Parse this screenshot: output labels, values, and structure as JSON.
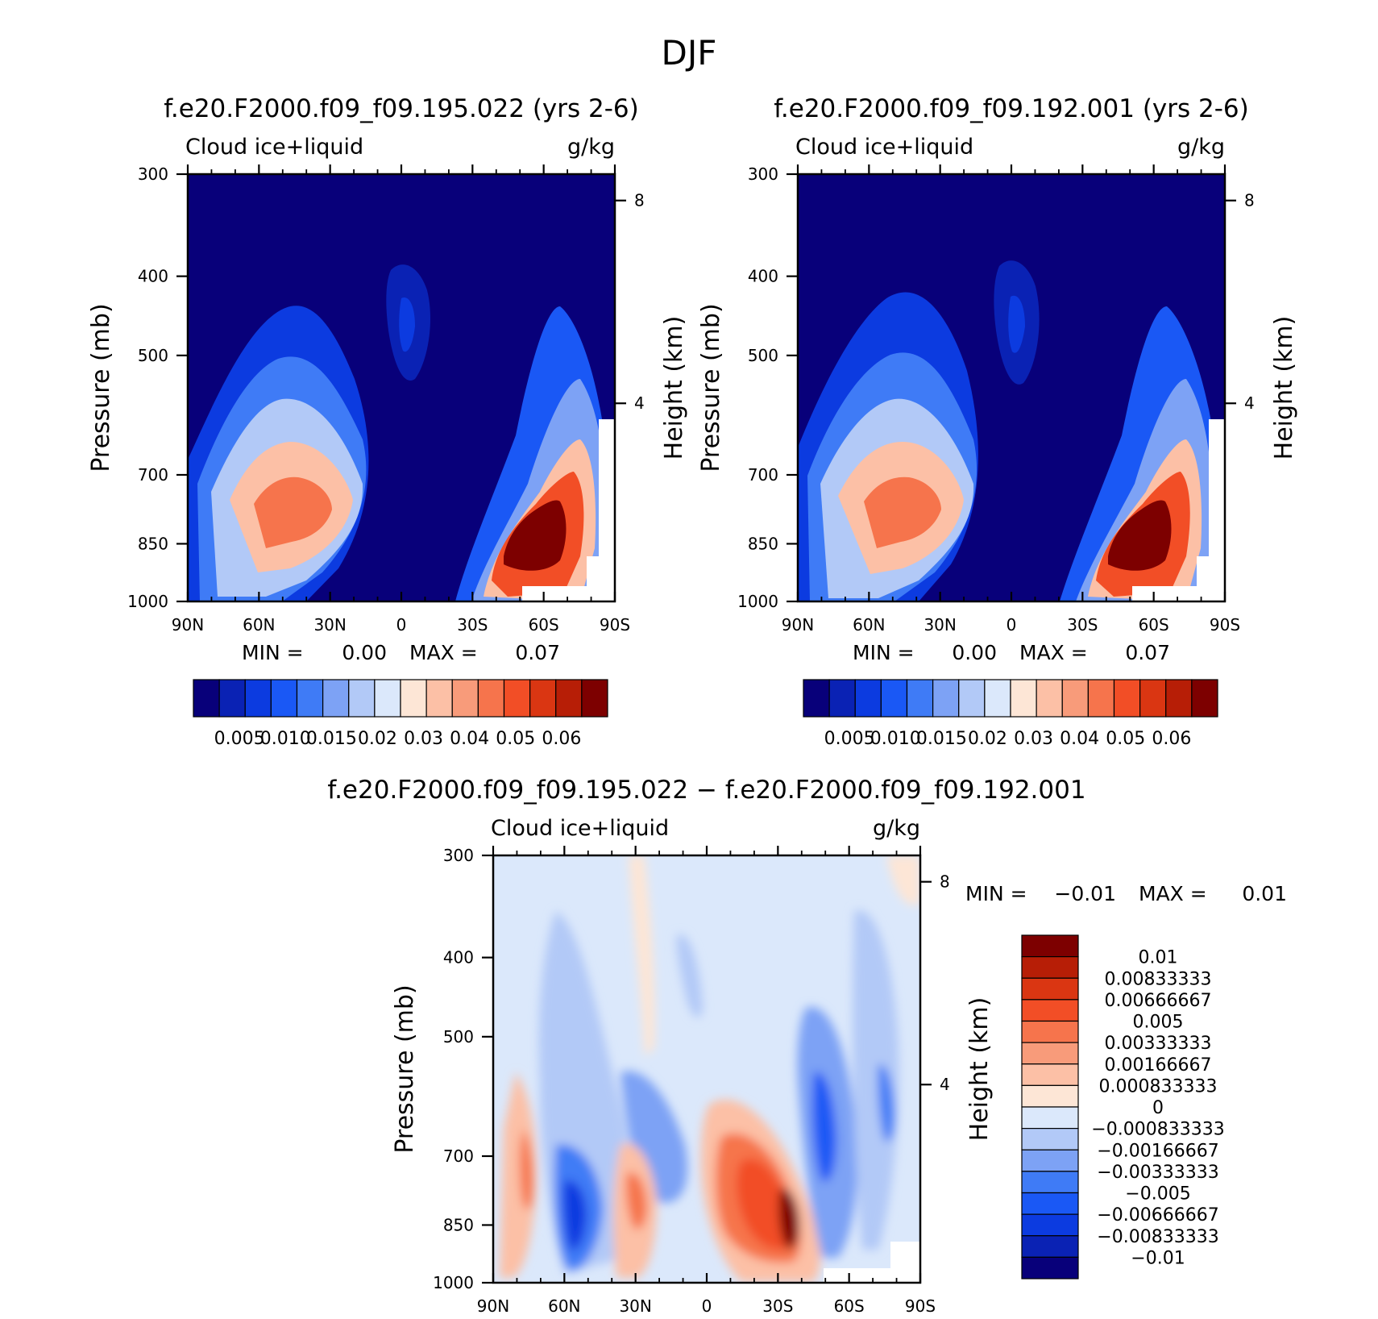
{
  "page_title": "DJF",
  "chart_data": [
    {
      "type": "heatmap",
      "title": "f.e20.F2000.f09_f09.195.022 (yrs 2-6)",
      "left_label": "Cloud  ice+liquid",
      "right_label": "g/kg",
      "xlabel": "",
      "ylabel": "Pressure (mb)",
      "y2label": "Height (km)",
      "xticks": [
        "90N",
        "60N",
        "30N",
        "0",
        "30S",
        "60S",
        "90S"
      ],
      "yticks": [
        "300",
        "400",
        "500",
        "700",
        "850",
        "1000"
      ],
      "y2ticks": [
        "8",
        "4"
      ],
      "ylim": [
        1000,
        300
      ],
      "stats": {
        "min_label": "MIN =",
        "min_value": "0.00",
        "max_label": "MAX =",
        "max_value": "0.07"
      },
      "colorbar_labels": [
        "0.005",
        "0.010",
        "0.015",
        "0.02",
        "0.03",
        "0.04",
        "0.05",
        "0.06"
      ],
      "colorbar_colors": [
        "#08007a",
        "#0a22b4",
        "#0c3be0",
        "#1a58f5",
        "#3f7bf6",
        "#7da2f5",
        "#b2c9f7",
        "#dbe8fb",
        "#fde6d6",
        "#fcc0a6",
        "#f89b7a",
        "#f6744c",
        "#f24e26",
        "#da3612",
        "#b71e06",
        "#7d0000"
      ],
      "features": [
        {
          "lat": 45,
          "p": 860,
          "value": 0.045
        },
        {
          "lat": -52,
          "p": 890,
          "value": 0.07
        },
        {
          "lat": 0,
          "p": 520,
          "value": 0.012
        }
      ]
    },
    {
      "type": "heatmap",
      "title": "f.e20.F2000.f09_f09.192.001 (yrs 2-6)",
      "left_label": "Cloud  ice+liquid",
      "right_label": "g/kg",
      "xlabel": "",
      "ylabel": "Pressure (mb)",
      "y2label": "Height (km)",
      "xticks": [
        "90N",
        "60N",
        "30N",
        "0",
        "30S",
        "60S",
        "90S"
      ],
      "yticks": [
        "300",
        "400",
        "500",
        "700",
        "850",
        "1000"
      ],
      "y2ticks": [
        "8",
        "4"
      ],
      "ylim": [
        1000,
        300
      ],
      "stats": {
        "min_label": "MIN =",
        "min_value": "0.00",
        "max_label": "MAX =",
        "max_value": "0.07"
      },
      "colorbar_labels": [
        "0.005",
        "0.010",
        "0.015",
        "0.02",
        "0.03",
        "0.04",
        "0.05",
        "0.06"
      ],
      "colorbar_colors": [
        "#08007a",
        "#0a22b4",
        "#0c3be0",
        "#1a58f5",
        "#3f7bf6",
        "#7da2f5",
        "#b2c9f7",
        "#dbe8fb",
        "#fde6d6",
        "#fcc0a6",
        "#f89b7a",
        "#f6744c",
        "#f24e26",
        "#da3612",
        "#b71e06",
        "#7d0000"
      ],
      "features": [
        {
          "lat": 47,
          "p": 860,
          "value": 0.045
        },
        {
          "lat": -52,
          "p": 880,
          "value": 0.07
        },
        {
          "lat": 0,
          "p": 520,
          "value": 0.012
        }
      ]
    },
    {
      "type": "heatmap",
      "title": "f.e20.F2000.f09_f09.195.022 − f.e20.F2000.f09_f09.192.001",
      "left_label": "Cloud  ice+liquid",
      "right_label": "g/kg",
      "xlabel": "",
      "ylabel": "Pressure (mb)",
      "y2label": "Height (km)",
      "xticks": [
        "90N",
        "60N",
        "30N",
        "0",
        "30S",
        "60S",
        "90S"
      ],
      "yticks": [
        "300",
        "400",
        "500",
        "700",
        "850",
        "1000"
      ],
      "y2ticks": [
        "8",
        "4"
      ],
      "ylim": [
        1000,
        300
      ],
      "stats": {
        "min_label": "MIN =",
        "min_value": "−0.01",
        "max_label": "MAX =",
        "max_value": "0.01"
      },
      "colorbar_labels": [
        "0.01",
        "0.00833333",
        "0.00666667",
        "0.005",
        "0.00333333",
        "0.00166667",
        "0.000833333",
        "0",
        "−0.000833333",
        "−0.00166667",
        "−0.00333333",
        "−0.005",
        "−0.00666667",
        "−0.00833333",
        "−0.01"
      ],
      "colorbar_colors": [
        "#7d0000",
        "#b71e06",
        "#da3612",
        "#f24e26",
        "#f6744c",
        "#f89b7a",
        "#fcc0a6",
        "#fde6d6",
        "#dbe8fb",
        "#b2c9f7",
        "#7da2f5",
        "#3f7bf6",
        "#1a58f5",
        "#0c3be0",
        "#0a22b4",
        "#08007a"
      ],
      "features": [
        {
          "lat": -25,
          "p": 880,
          "value": 0.01
        },
        {
          "lat": 30,
          "p": 870,
          "value": 0.006
        },
        {
          "lat": 52,
          "p": 900,
          "value": -0.007
        }
      ]
    }
  ]
}
